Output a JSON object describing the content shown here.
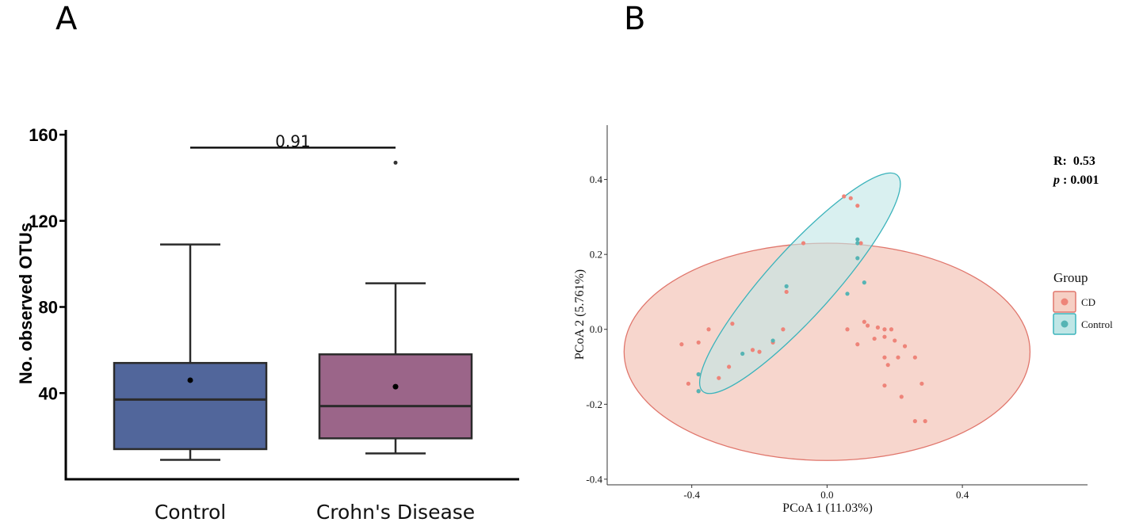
{
  "panels": {
    "a_label": "A",
    "b_label": "B"
  },
  "colors": {
    "control_box": "#51669b",
    "crohn_box": "#9b6589",
    "cd_fill": "#f6cfc4",
    "cd_stroke": "#e0766c",
    "control_fill": "#bfe6e6",
    "control_stroke": "#3bb3bb",
    "cd_point": "#ee8479",
    "control_point": "#56b4b4"
  },
  "chart_data": [
    {
      "type": "box",
      "panel": "A",
      "ylabel": "No. observed OTUs",
      "xlabel": "",
      "ylim": [
        0,
        160
      ],
      "yticks": [
        40,
        80,
        120,
        160
      ],
      "categories": [
        "Control",
        "Crohn's Disease"
      ],
      "boxes": [
        {
          "name": "Control",
          "whisker_low": 9,
          "q1": 14,
          "median": 37,
          "q3": 54,
          "whisker_high": 109,
          "mean": 46,
          "outliers": []
        },
        {
          "name": "Crohn's Disease",
          "whisker_low": 12,
          "q1": 19,
          "median": 34,
          "q3": 58,
          "whisker_high": 91,
          "mean": 43,
          "outliers": [
            147
          ]
        }
      ],
      "significance": {
        "label": "0.91",
        "y": 154
      }
    },
    {
      "type": "scatter",
      "panel": "B",
      "xlabel": "PCoA 1 (11.03%)",
      "ylabel": "PCoA 2 (5.761%)",
      "xlim": [
        -0.65,
        0.77
      ],
      "ylim": [
        -0.415,
        0.545
      ],
      "xticks": [
        "-0.4",
        "0.0",
        "0.4"
      ],
      "yticks": [
        "-0.4",
        "-0.2",
        "0.0",
        "0.2",
        "0.4"
      ],
      "stats": {
        "r_label": "R:",
        "r_value": "0.53",
        "p_label": "p",
        "p_value": ": 0.001"
      },
      "legend": {
        "title": "Group",
        "items": [
          "CD",
          "Control"
        ]
      },
      "series": [
        {
          "name": "CD",
          "points": [
            [
              0.05,
              0.355
            ],
            [
              0.07,
              0.35
            ],
            [
              0.09,
              0.33
            ],
            [
              -0.07,
              0.23
            ],
            [
              0.1,
              0.23
            ],
            [
              0.11,
              0.02
            ],
            [
              0.12,
              0.01
            ],
            [
              0.15,
              0.005
            ],
            [
              0.17,
              0.0
            ],
            [
              0.19,
              0.0
            ],
            [
              0.14,
              -0.025
            ],
            [
              0.17,
              -0.02
            ],
            [
              0.2,
              -0.03
            ],
            [
              0.23,
              -0.045
            ],
            [
              0.26,
              -0.075
            ],
            [
              0.17,
              -0.075
            ],
            [
              0.18,
              -0.095
            ],
            [
              0.21,
              -0.075
            ],
            [
              0.28,
              -0.145
            ],
            [
              0.17,
              -0.15
            ],
            [
              0.22,
              -0.18
            ],
            [
              0.26,
              -0.245
            ],
            [
              0.29,
              -0.245
            ],
            [
              0.06,
              0.0
            ],
            [
              0.09,
              -0.04
            ],
            [
              -0.12,
              0.1
            ],
            [
              -0.16,
              -0.035
            ],
            [
              -0.13,
              0.0
            ],
            [
              -0.2,
              -0.06
            ],
            [
              -0.22,
              -0.055
            ],
            [
              -0.28,
              0.015
            ],
            [
              -0.29,
              -0.1
            ],
            [
              -0.32,
              -0.13
            ],
            [
              -0.35,
              0.0
            ],
            [
              -0.38,
              -0.035
            ],
            [
              -0.38,
              -0.12
            ],
            [
              -0.43,
              -0.04
            ],
            [
              -0.41,
              -0.145
            ],
            [
              -0.38,
              -0.165
            ]
          ]
        },
        {
          "name": "Control",
          "points": [
            [
              0.09,
              0.24
            ],
            [
              0.09,
              0.23
            ],
            [
              0.09,
              0.19
            ],
            [
              0.11,
              0.125
            ],
            [
              0.06,
              0.095
            ],
            [
              -0.12,
              0.115
            ],
            [
              -0.16,
              -0.03
            ],
            [
              -0.25,
              -0.065
            ],
            [
              -0.38,
              -0.12
            ],
            [
              -0.38,
              -0.165
            ]
          ]
        }
      ],
      "ellipses": [
        {
          "group": "CD",
          "cx": 0.0,
          "cy": -0.06,
          "rx": 0.6,
          "ry": 0.29,
          "rotation_deg": 0
        },
        {
          "group": "Control",
          "cx": -0.08,
          "cy": 0.123,
          "rx": 0.43,
          "ry": 0.088,
          "rotation_deg": -48
        }
      ]
    }
  ]
}
